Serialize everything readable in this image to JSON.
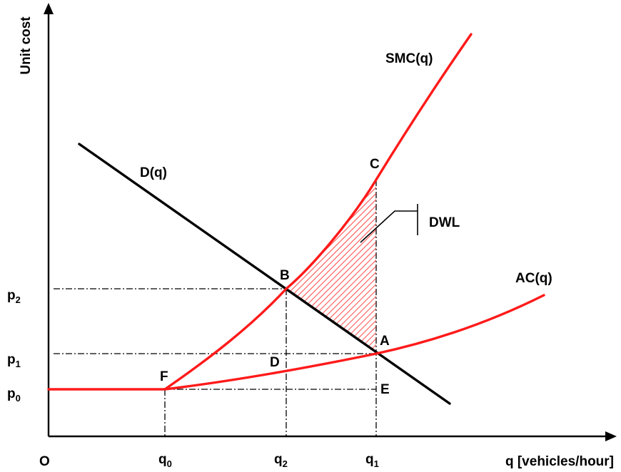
{
  "axes": {
    "y_label": "Unit cost",
    "x_label": "q [vehicles/hour]",
    "origin": "O"
  },
  "y_ticks": [
    {
      "base": "p",
      "sub": "2"
    },
    {
      "base": "p",
      "sub": "1"
    },
    {
      "base": "p",
      "sub": "0"
    }
  ],
  "x_ticks": [
    {
      "base": "q",
      "sub": "0"
    },
    {
      "base": "q",
      "sub": "2"
    },
    {
      "base": "q",
      "sub": "1"
    }
  ],
  "curves": {
    "smc": "SMC(q)",
    "demand": "D(q)",
    "ac": "AC(q)"
  },
  "points": {
    "a": "A",
    "b": "B",
    "c": "C",
    "d": "D",
    "e": "E",
    "f": "F"
  },
  "dwl_label": "DWL",
  "colors": {
    "cost_curves": "#ff1a1a",
    "demand": "#000000",
    "dwl_hatch": "#ff1a1a"
  }
}
